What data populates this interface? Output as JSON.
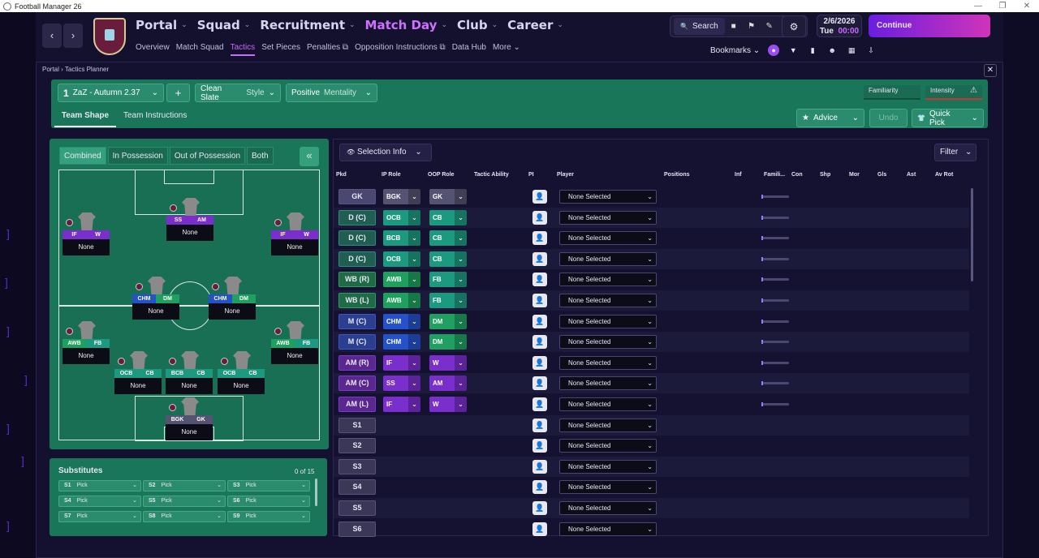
{
  "window": {
    "title": "Football Manager 26",
    "min": "—",
    "max": "❐",
    "close": "✕"
  },
  "nav": {
    "back": "‹",
    "forward": "›",
    "main": [
      {
        "label": "Portal",
        "active": false
      },
      {
        "label": "Squad",
        "active": false
      },
      {
        "label": "Recruitment",
        "active": false
      },
      {
        "label": "Match Day",
        "active": true
      },
      {
        "label": "Club",
        "active": false
      },
      {
        "label": "Career",
        "active": false
      }
    ],
    "sub": [
      {
        "label": "Overview",
        "active": false
      },
      {
        "label": "Match Squad",
        "active": false
      },
      {
        "label": "Tactics",
        "active": true
      },
      {
        "label": "Set Pieces",
        "active": false
      },
      {
        "label": "Penalties ⧉",
        "active": false
      },
      {
        "label": "Opposition Instructions ⧉",
        "active": false
      },
      {
        "label": "Data Hub",
        "active": false
      },
      {
        "label": "More ⌄",
        "active": false
      }
    ]
  },
  "toolbar": {
    "search_label": "Search",
    "search_icon": "🔍",
    "icons": [
      "■",
      "⚑",
      "✎"
    ],
    "gear": "⚙"
  },
  "date": {
    "date": "2/6/2026",
    "day": "Tue",
    "time": "00:00"
  },
  "continue_label": "Continue",
  "bookmarks": {
    "label": "Bookmarks",
    "chev": "⌄",
    "icons": [
      "●",
      "▼",
      "▮",
      "☻",
      "▦",
      "⇩"
    ]
  },
  "breadcrumb": {
    "portal": "Portal",
    "sep": "›",
    "current": "Tactics Planner"
  },
  "tactic": {
    "slot": "1",
    "name": "ZaZ - Autumn 2.37",
    "add": "+",
    "style_value": "Clean Slate",
    "style_label": "Style",
    "mentality_value": "Positive",
    "mentality_label": "Mentality",
    "familiarity": "Familiarity",
    "intensity": "Intensity",
    "warn": "⚠"
  },
  "tabs": {
    "team_shape": "Team Shape",
    "team_instructions": "Team Instructions"
  },
  "actions": {
    "advice": "Advice",
    "undo": "Undo",
    "quick_pick": "Quick Pick"
  },
  "view_tabs": [
    "Combined",
    "In Possession",
    "Out of Possession",
    "Both"
  ],
  "collapse_label": "«",
  "pitch_players": [
    {
      "ip": "IF",
      "oop": "W",
      "name": "None",
      "ipc": "#7a2ecc",
      "oopc": "#7a2ecc"
    },
    {
      "ip": "SS",
      "oop": "AM",
      "name": "None",
      "ipc": "#7a2ecc",
      "oopc": "#7a2ecc"
    },
    {
      "ip": "IF",
      "oop": "W",
      "name": "None",
      "ipc": "#7a2ecc",
      "oopc": "#7a2ecc"
    },
    {
      "ip": "CHM",
      "oop": "DM",
      "name": "None",
      "ipc": "#2552c8",
      "oopc": "#1fa060"
    },
    {
      "ip": "CHM",
      "oop": "DM",
      "name": "None",
      "ipc": "#2552c8",
      "oopc": "#1fa060"
    },
    {
      "ip": "AWB",
      "oop": "FB",
      "name": "None",
      "ipc": "#1ea05f",
      "oopc": "#1c9a80"
    },
    {
      "ip": "AWB",
      "oop": "FB",
      "name": "None",
      "ipc": "#1ea05f",
      "oopc": "#1c9a80"
    },
    {
      "ip": "OCB",
      "oop": "CB",
      "name": "None",
      "ipc": "#1c9a80",
      "oopc": "#1c9a80"
    },
    {
      "ip": "BCB",
      "oop": "CB",
      "name": "None",
      "ipc": "#1c9a80",
      "oopc": "#1c9a80"
    },
    {
      "ip": "OCB",
      "oop": "CB",
      "name": "None",
      "ipc": "#1c9a80",
      "oopc": "#1c9a80"
    },
    {
      "ip": "BGK",
      "oop": "GK",
      "name": "None",
      "ipc": "#555372",
      "oopc": "#555372"
    }
  ],
  "subs": {
    "title": "Substitutes",
    "count": "0 of 15",
    "slots": [
      {
        "id": "S1",
        "label": "Pick"
      },
      {
        "id": "S2",
        "label": "Pick"
      },
      {
        "id": "S3",
        "label": "Pick"
      },
      {
        "id": "S4",
        "label": "Pick"
      },
      {
        "id": "S5",
        "label": "Pick"
      },
      {
        "id": "S6",
        "label": "Pick"
      },
      {
        "id": "S7",
        "label": "Pick"
      },
      {
        "id": "S8",
        "label": "Pick"
      },
      {
        "id": "S9",
        "label": "Pick"
      }
    ]
  },
  "table": {
    "selection_info": "Selection Info",
    "filter": "Filter",
    "headers": [
      "Pkd",
      "IP Role",
      "OOP Role",
      "Tactic Ability",
      "PI",
      "Player",
      "Positions",
      "Inf",
      "Famili...",
      "Con",
      "Shp",
      "Mor",
      "Gls",
      "Ast",
      "Av Rot"
    ],
    "rows": [
      {
        "pkd": "GK",
        "cls": "gk",
        "ip": "BGK",
        "ipc": "c-gk",
        "oop": "GK",
        "oopc": "c-gk",
        "player": "None Selected"
      },
      {
        "pkd": "D (C)",
        "cls": "def",
        "ip": "OCB",
        "ipc": "c-def",
        "oop": "CB",
        "oopc": "c-def",
        "player": "None Selected"
      },
      {
        "pkd": "D (C)",
        "cls": "def",
        "ip": "BCB",
        "ipc": "c-def",
        "oop": "CB",
        "oopc": "c-def",
        "player": "None Selected"
      },
      {
        "pkd": "D (C)",
        "cls": "def",
        "ip": "OCB",
        "ipc": "c-def",
        "oop": "CB",
        "oopc": "c-def",
        "player": "None Selected"
      },
      {
        "pkd": "WB (R)",
        "cls": "dm",
        "ip": "AWB",
        "ipc": "c-wb",
        "oop": "FB",
        "oopc": "c-def",
        "player": "None Selected"
      },
      {
        "pkd": "WB (L)",
        "cls": "dm",
        "ip": "AWB",
        "ipc": "c-wb",
        "oop": "FB",
        "oopc": "c-def",
        "player": "None Selected"
      },
      {
        "pkd": "M (C)",
        "cls": "mid",
        "ip": "CHM",
        "ipc": "c-mid",
        "oop": "DM",
        "oopc": "c-dm",
        "player": "None Selected"
      },
      {
        "pkd": "M (C)",
        "cls": "mid",
        "ip": "CHM",
        "ipc": "c-mid",
        "oop": "DM",
        "oopc": "c-dm",
        "player": "None Selected"
      },
      {
        "pkd": "AM (R)",
        "cls": "am",
        "ip": "IF",
        "ipc": "c-am",
        "oop": "W",
        "oopc": "c-am",
        "player": "None Selected"
      },
      {
        "pkd": "AM (C)",
        "cls": "am",
        "ip": "SS",
        "ipc": "c-am",
        "oop": "AM",
        "oopc": "c-am",
        "player": "None Selected"
      },
      {
        "pkd": "AM (L)",
        "cls": "am",
        "ip": "IF",
        "ipc": "c-am",
        "oop": "W",
        "oopc": "c-am",
        "player": "None Selected"
      },
      {
        "pkd": "S1",
        "cls": "sub",
        "ip": "",
        "oop": "",
        "player": "None Selected"
      },
      {
        "pkd": "S2",
        "cls": "sub",
        "ip": "",
        "oop": "",
        "player": "None Selected"
      },
      {
        "pkd": "S3",
        "cls": "sub",
        "ip": "",
        "oop": "",
        "player": "None Selected"
      },
      {
        "pkd": "S4",
        "cls": "sub",
        "ip": "",
        "oop": "",
        "player": "None Selected"
      },
      {
        "pkd": "S5",
        "cls": "sub",
        "ip": "",
        "oop": "",
        "player": "None Selected"
      },
      {
        "pkd": "S6",
        "cls": "sub",
        "ip": "",
        "oop": "",
        "player": "None Selected"
      }
    ]
  },
  "icons": {
    "chevron": "⌄",
    "person": "👤",
    "eye": "👁",
    "star": "★",
    "shirt": "👕"
  }
}
